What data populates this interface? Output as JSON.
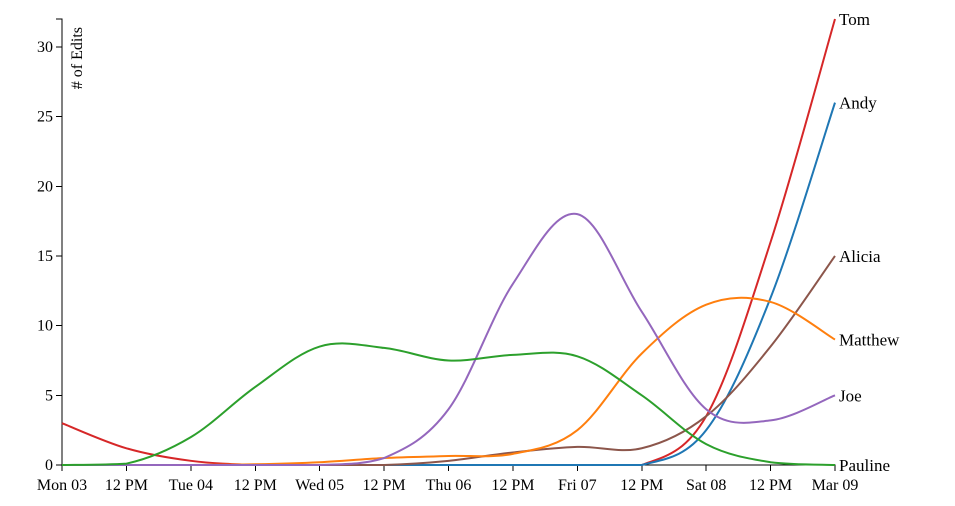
{
  "chart_data": {
    "type": "line",
    "title": "",
    "xlabel": "",
    "ylabel": "# of Edits",
    "ylim": [
      0,
      32
    ],
    "yticks": [
      0,
      5,
      10,
      15,
      20,
      25,
      30
    ],
    "x": [
      "Mon 03",
      "12 PM",
      "Tue 04",
      "12 PM",
      "Wed 05",
      "12 PM",
      "Thu 06",
      "12 PM",
      "Fri 07",
      "12 PM",
      "Sat 08",
      "12 PM",
      "Mar 09"
    ],
    "xticks": [
      "Mon 03",
      "12 PM",
      "Tue 04",
      "12 PM",
      "Wed 05",
      "12 PM",
      "Thu 06",
      "12 PM",
      "Fri 07",
      "12 PM",
      "Sat 08",
      "12 PM",
      "Mar 09"
    ],
    "grid": false,
    "legend": "end-of-line labels",
    "series": [
      {
        "name": "Tom",
        "color": "#d62728",
        "values": [
          3,
          1.2,
          0.3,
          0,
          0,
          0,
          0,
          0,
          0,
          0,
          3.5,
          16,
          32
        ]
      },
      {
        "name": "Andy",
        "color": "#1f77b4",
        "values": [
          0,
          0,
          0,
          0,
          0,
          0,
          0,
          0,
          0,
          0,
          2.5,
          12,
          26
        ]
      },
      {
        "name": "Alicia",
        "color": "#8c564b",
        "values": [
          0,
          0,
          0,
          0,
          0,
          0,
          0.3,
          0.9,
          1.3,
          1.2,
          3.5,
          8.5,
          15
        ]
      },
      {
        "name": "Matthew",
        "color": "#ff7f0e",
        "values": [
          0,
          0,
          0,
          0.05,
          0.2,
          0.5,
          0.65,
          0.8,
          2.5,
          8,
          11.5,
          11.7,
          9
        ]
      },
      {
        "name": "Joe",
        "color": "#9467bd",
        "values": [
          0,
          0,
          0,
          0,
          0,
          0.5,
          4,
          13,
          18,
          11,
          4,
          3.2,
          5
        ]
      },
      {
        "name": "Pauline",
        "color": "#2ca02c",
        "values": [
          0,
          0.1,
          2,
          5.6,
          8.5,
          8.4,
          7.5,
          7.9,
          7.8,
          5,
          1.5,
          0.2,
          0
        ]
      }
    ]
  }
}
